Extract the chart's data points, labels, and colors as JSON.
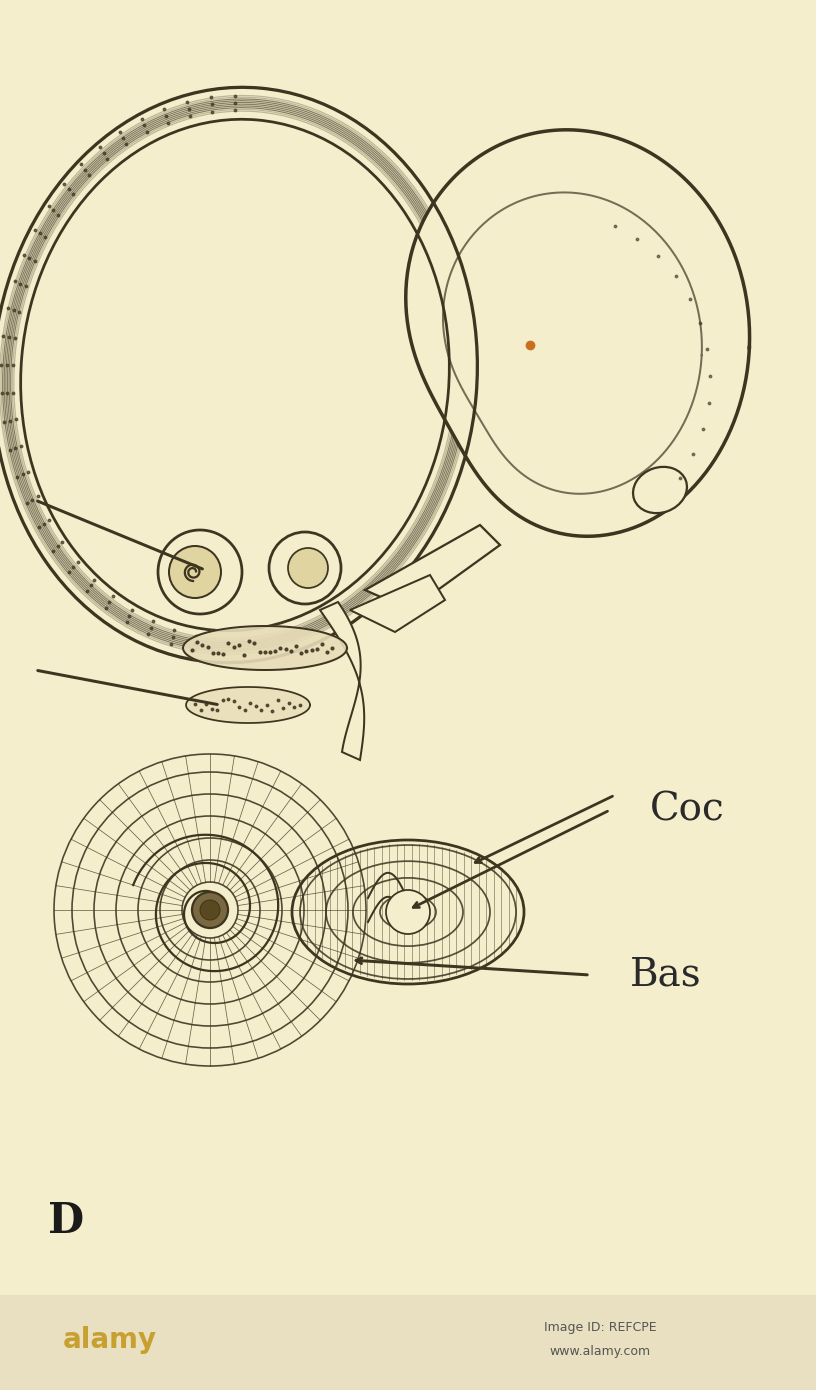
{
  "background_color": "#f5eecc",
  "line_color": "#3d3520",
  "line_width": 1.8,
  "label_D": "D",
  "label_Coc": "Coc",
  "label_Bas": "Bas",
  "fig_width": 8.16,
  "fig_height": 13.9,
  "dpi": 100
}
